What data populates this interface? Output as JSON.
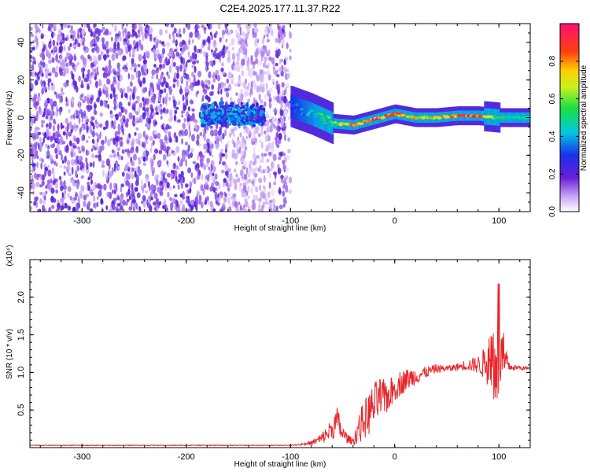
{
  "title": "C2E4.2025.177.11.37.R22",
  "colors": {
    "snr_line": "#e8262a",
    "spectrum_low": "#7b1fe0",
    "spectrum_mid": "#00c8d8",
    "spectrum_high": "#ff1a1a"
  },
  "chart_data": [
    {
      "type": "heatmap",
      "name": "spectrogram",
      "xlabel": "Height of straight line (km)",
      "ylabel": "Frequency (Hz)",
      "xlim": [
        -350,
        130
      ],
      "ylim": [
        -50,
        50
      ],
      "xticks": [
        -300,
        -200,
        -100,
        0,
        100
      ],
      "yticks": [
        -40,
        -20,
        0,
        20,
        40
      ],
      "colorbar": {
        "label": "Normalized spectral amplitude",
        "range": [
          0.0,
          1.0
        ],
        "ticks": [
          0.0,
          0.2,
          0.4,
          0.6,
          0.8
        ],
        "tick_labels": [
          "0.0",
          "0.2",
          "0.4",
          "0.6",
          "0.8"
        ],
        "colormap": "rainbow (violet → blue → cyan → green → yellow → red → magenta)"
      },
      "signal_track": {
        "x": [
          -100,
          -80,
          -60,
          -40,
          -20,
          0,
          20,
          40,
          60,
          80,
          100,
          130
        ],
        "y": [
          6,
          2,
          -3,
          -4,
          -1,
          2,
          0,
          0,
          1,
          1,
          0,
          0
        ],
        "amplitude": [
          0.3,
          0.45,
          0.6,
          0.85,
          0.9,
          0.95,
          0.75,
          0.75,
          0.85,
          0.95,
          0.5,
          0.5
        ]
      },
      "noise_region": {
        "x": [
          -350,
          -100
        ],
        "amplitude": 0.15
      },
      "blob_region": {
        "x": [
          -185,
          -125
        ],
        "y": [
          -5,
          8
        ],
        "amplitude": 0.3
      }
    },
    {
      "type": "line",
      "name": "snr",
      "xlabel": "Height of straight line (km)",
      "ylabel": "SNR (10 * v/v)",
      "multiplier_label": "(x10⁴)",
      "xlim": [
        -350,
        130
      ],
      "ylim": [
        0,
        2.5
      ],
      "xticks": [
        -300,
        -200,
        -100,
        0,
        100
      ],
      "yticks": [
        0.5,
        1.0,
        1.5,
        2.0
      ],
      "ytick_labels": [
        "0.5",
        "1.0",
        "1.5",
        "2.0"
      ],
      "series": [
        {
          "x": [
            -350,
            -300,
            -250,
            -200,
            -150,
            -100,
            -80,
            -70,
            -60,
            -55,
            -50,
            -45,
            -40,
            -35,
            -30,
            -25,
            -20,
            -15,
            -10,
            -5,
            0,
            10,
            20,
            30,
            40,
            50,
            60,
            70,
            80,
            85,
            90,
            95,
            100,
            103,
            110,
            120,
            130
          ],
          "values": [
            0.03,
            0.03,
            0.03,
            0.03,
            0.03,
            0.03,
            0.06,
            0.12,
            0.25,
            0.35,
            0.18,
            0.12,
            0.08,
            0.25,
            0.35,
            0.45,
            0.55,
            0.65,
            0.65,
            0.7,
            0.8,
            0.9,
            0.95,
            1.0,
            1.05,
            1.05,
            1.07,
            1.1,
            1.1,
            1.12,
            1.15,
            1.2,
            1.5,
            1.15,
            1.07,
            1.06,
            1.05
          ],
          "spread": [
            0.0,
            0.0,
            0.0,
            0.0,
            0.0,
            0.0,
            0.03,
            0.08,
            0.15,
            0.2,
            0.12,
            0.06,
            0.05,
            0.2,
            0.25,
            0.3,
            0.3,
            0.3,
            0.25,
            0.2,
            0.2,
            0.15,
            0.12,
            0.08,
            0.06,
            0.04,
            0.05,
            0.08,
            0.12,
            0.2,
            0.35,
            0.7,
            1.0,
            0.5,
            0.05,
            0.03,
            0.02
          ]
        }
      ]
    }
  ]
}
